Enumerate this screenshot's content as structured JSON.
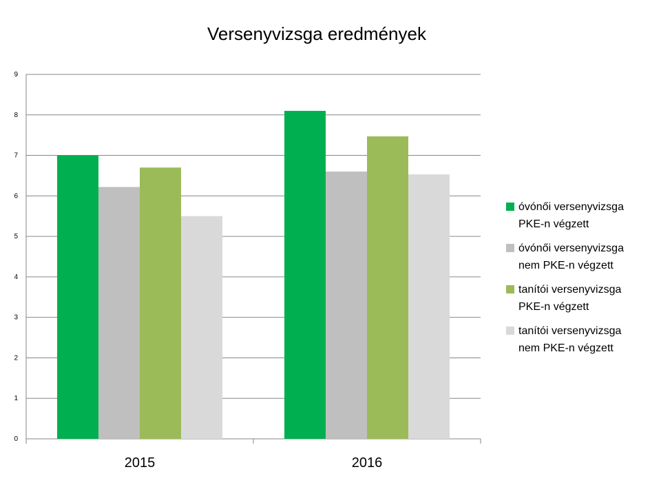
{
  "chart_data": {
    "type": "bar",
    "title": "Versenyvizsga eredmények",
    "xlabel": "",
    "ylabel": "",
    "ylim": [
      0,
      9
    ],
    "yticks": [
      0,
      1,
      2,
      3,
      4,
      5,
      6,
      7,
      8,
      9
    ],
    "grid": true,
    "legend_position": "right",
    "categories": [
      "2015",
      "2016"
    ],
    "series": [
      {
        "name": "óvónői versenyvizsga PKE-n végzett",
        "color": "#00b050",
        "values": [
          7.0,
          8.1
        ]
      },
      {
        "name": "óvónői versenyvizsga nem PKE-n végzett",
        "color": "#bfbfbf",
        "values": [
          6.22,
          6.6
        ]
      },
      {
        "name": "tanítói versenyvizsga PKE-n végzett",
        "color": "#9bbb59",
        "values": [
          6.7,
          7.47
        ]
      },
      {
        "name": "tanítói versenyvizsga nem PKE-n végzett",
        "color": "#d9d9d9",
        "values": [
          5.5,
          6.53
        ]
      }
    ]
  },
  "legend": {
    "items": [
      {
        "label": "óvónői versenyvizsga\nPKE-n végzett"
      },
      {
        "label": "óvónői versenyvizsga\nnem PKE-n végzett"
      },
      {
        "label": "tanítói versenyvizsga\nPKE-n végzett"
      },
      {
        "label": "tanítói versenyvizsga\nnem PKE-n végzett"
      }
    ]
  }
}
